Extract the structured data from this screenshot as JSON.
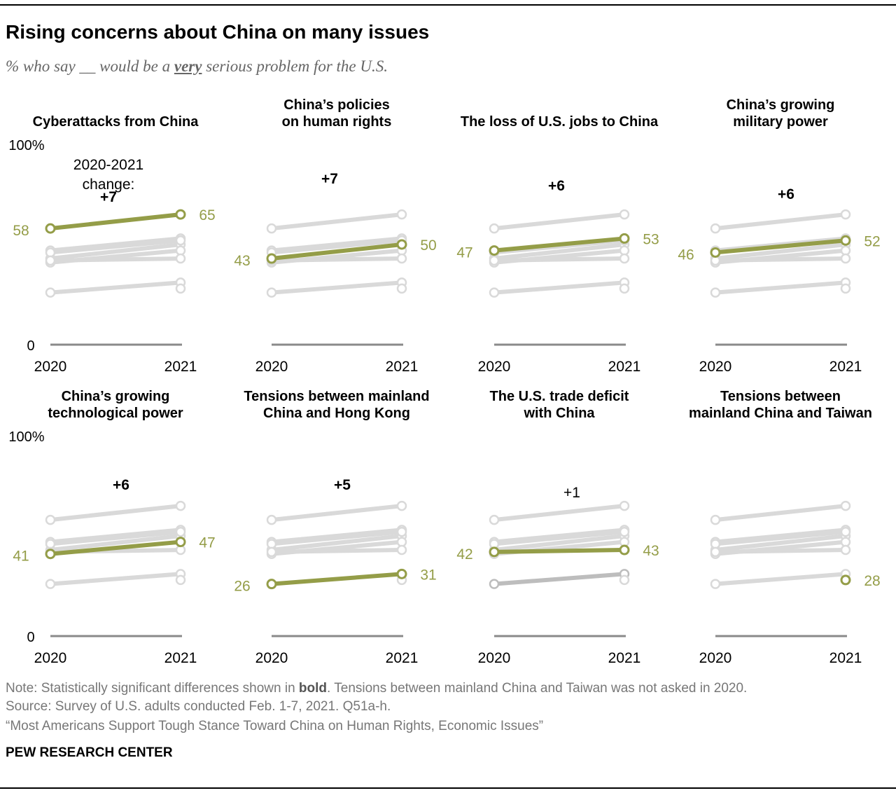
{
  "title": "Rising concerns about China on many issues",
  "subtitle": {
    "before": "% who say __ would be a ",
    "emph": "very",
    "after": " serious problem for the U.S."
  },
  "chart_data": {
    "type": "line",
    "layout": "small-multiples slope charts, 2 rows x 4 columns",
    "x": [
      "2020",
      "2021"
    ],
    "ylim": [
      0,
      100
    ],
    "y_tick_labels": {
      "top": "100%",
      "bottom": "0"
    },
    "change_caption": "2020-2021 change:",
    "highlight_color": "#949d48",
    "context_color": "#d9d9d9",
    "grid": false,
    "panels": [
      {
        "title": [
          "Cyberattacks from China"
        ],
        "values": [
          58,
          65
        ],
        "change": "+7",
        "significant": true
      },
      {
        "title": [
          "China’s policies",
          "on human rights"
        ],
        "values": [
          43,
          50
        ],
        "change": "+7",
        "significant": true
      },
      {
        "title": [
          "The loss of U.S. jobs to China"
        ],
        "values": [
          47,
          53
        ],
        "change": "+6",
        "significant": true
      },
      {
        "title": [
          "China’s growing",
          "military power"
        ],
        "values": [
          46,
          52
        ],
        "change": "+6",
        "significant": true
      },
      {
        "title": [
          "China’s growing",
          "technological power"
        ],
        "values": [
          41,
          47
        ],
        "change": "+6",
        "significant": true
      },
      {
        "title": [
          "Tensions between mainland",
          "China and Hong Kong"
        ],
        "values": [
          26,
          31
        ],
        "change": "+5",
        "significant": true
      },
      {
        "title": [
          "The U.S. trade deficit",
          "with China"
        ],
        "values": [
          42,
          43
        ],
        "change": "+1",
        "significant": false
      },
      {
        "title": [
          "Tensions between",
          "mainland China and Taiwan"
        ],
        "values": [
          null,
          28
        ],
        "change": "",
        "significant": false
      }
    ]
  },
  "footer": {
    "note_before": "Note: Statistically significant differences shown in ",
    "note_bold": "bold",
    "note_after": ". Tensions between mainland China and Taiwan was not asked in 2020.",
    "source": "Source: Survey of U.S. adults conducted Feb. 1-7, 2021. Q51a-h.",
    "report": "“Most Americans Support Tough Stance Toward China on Human Rights, Economic Issues”",
    "brand": "PEW RESEARCH CENTER"
  }
}
